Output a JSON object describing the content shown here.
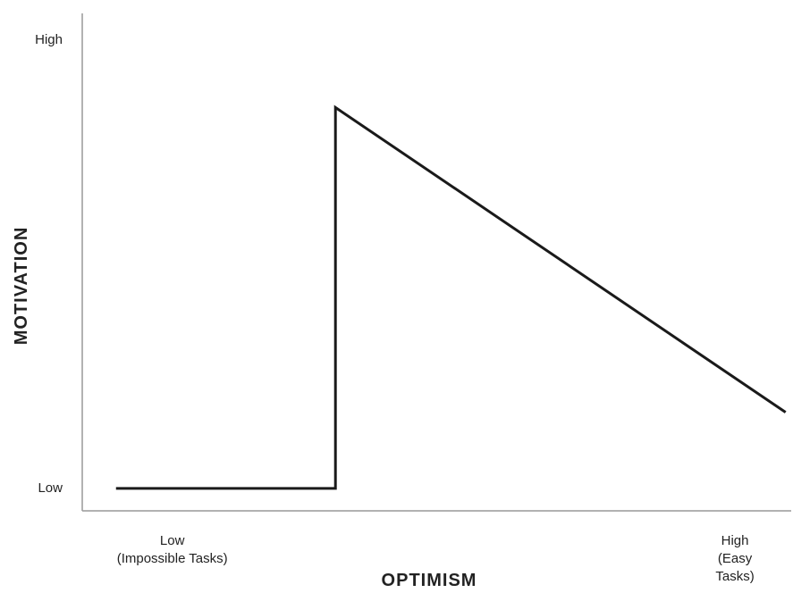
{
  "chart_data": {
    "type": "line",
    "xlabel": "OPTIMISM",
    "ylabel": "MOTIVATION",
    "x": [
      -10,
      29,
      29,
      109
    ],
    "series": [
      {
        "color": "#1a1a1a",
        "values": [
          0,
          0,
          85,
          17
        ]
      }
    ],
    "xlim": [
      -16,
      110
    ],
    "ylim": [
      -5,
      106
    ],
    "xticks": [
      {
        "value": 0,
        "label": "Low\n(Impossible Tasks)"
      },
      {
        "value": 100,
        "label": "High\n(Easy Tasks)"
      }
    ],
    "yticks": [
      {
        "value": 0,
        "label": "Low"
      },
      {
        "value": 100,
        "label": "High"
      }
    ],
    "grid": false
  }
}
